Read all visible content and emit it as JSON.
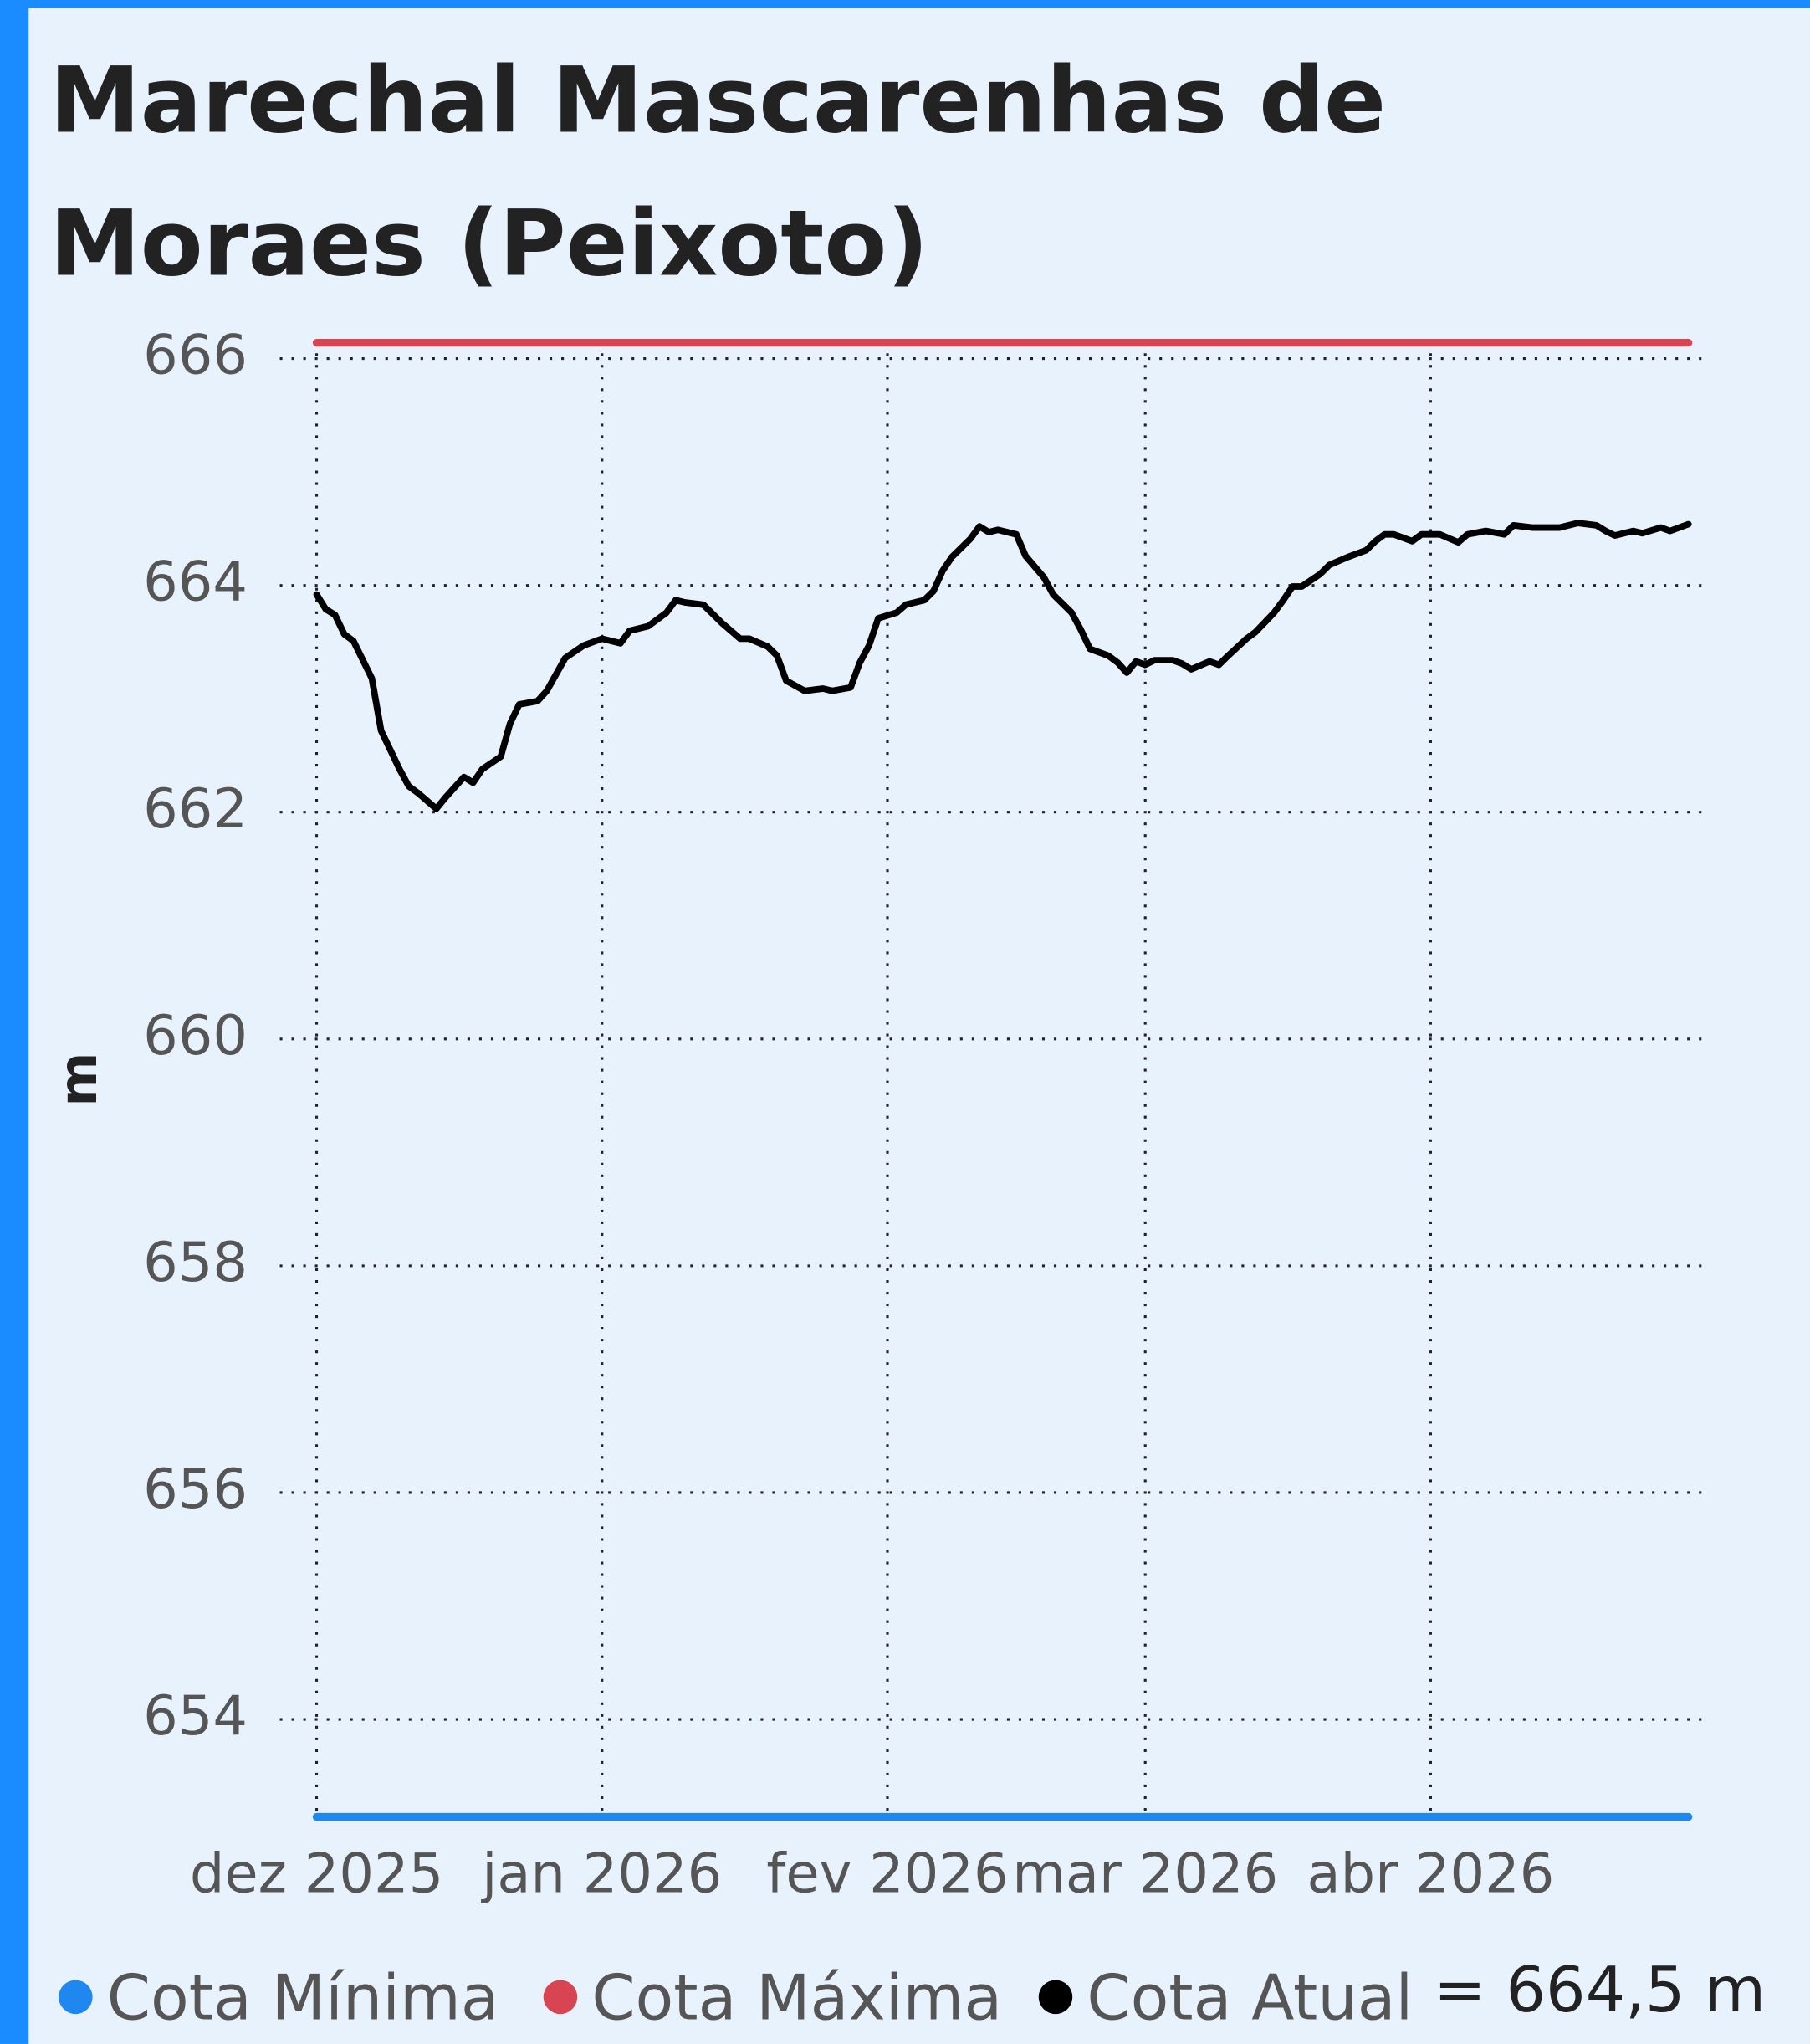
{
  "chart_data": {
    "type": "line",
    "title": "Marechal Mascarenhas de Moraes (Peixoto)",
    "y_label": "m",
    "annotation": "= 664,5 m",
    "xlim": [
      -4,
      151
    ],
    "ylim": [
      653,
      666.3
    ],
    "xticks": [
      {
        "value": 0,
        "label": "dez 2025"
      },
      {
        "value": 31,
        "label": "jan 2026"
      },
      {
        "value": 62,
        "label": "fev 2026"
      },
      {
        "value": 90,
        "label": "mar 2026"
      },
      {
        "value": 121,
        "label": "abr 2026"
      }
    ],
    "yticks": [
      654,
      656,
      658,
      660,
      662,
      664,
      666
    ],
    "grid": true,
    "series": [
      {
        "name": "Cota Mínima",
        "color": "#1e88f0",
        "x": [
          0,
          149
        ],
        "values": [
          653.14,
          653.14
        ]
      },
      {
        "name": "Cota Máxima",
        "color": "#d94452",
        "x": [
          0,
          149
        ],
        "values": [
          666.14,
          666.14
        ]
      },
      {
        "name": "Cota Atual",
        "color": "#000000",
        "x": [
          0,
          1,
          2,
          3,
          4,
          6,
          7,
          9,
          10,
          11,
          13,
          14,
          16,
          17,
          18,
          20,
          21,
          22,
          24,
          25,
          27,
          29,
          31,
          33,
          34,
          36,
          38,
          39,
          40,
          42,
          44,
          46,
          47,
          49,
          50,
          51,
          53,
          55,
          56,
          58,
          59,
          60,
          61,
          63,
          64,
          66,
          67,
          68,
          69,
          71,
          72,
          73,
          74,
          76,
          77,
          79,
          80,
          82,
          83,
          84,
          86,
          87,
          88,
          89,
          90,
          91,
          93,
          94,
          95,
          97,
          98,
          99,
          101,
          102,
          104,
          105,
          106,
          107,
          109,
          110,
          112,
          114,
          115,
          116,
          117,
          119,
          120,
          122,
          124,
          125,
          127,
          129,
          130,
          132,
          135,
          137,
          139,
          140,
          141,
          143,
          144,
          146,
          147,
          149
        ],
        "values": [
          663.92,
          663.79,
          663.74,
          663.57,
          663.51,
          663.18,
          662.72,
          662.38,
          662.23,
          662.17,
          662.03,
          662.13,
          662.31,
          662.26,
          662.38,
          662.49,
          662.78,
          662.95,
          662.98,
          663.07,
          663.36,
          663.47,
          663.53,
          663.49,
          663.6,
          663.64,
          663.76,
          663.87,
          663.85,
          663.83,
          663.67,
          663.53,
          663.53,
          663.46,
          663.38,
          663.16,
          663.07,
          663.09,
          663.07,
          663.1,
          663.32,
          663.47,
          663.71,
          663.76,
          663.83,
          663.87,
          663.95,
          664.13,
          664.25,
          664.41,
          664.52,
          664.47,
          664.49,
          664.45,
          664.26,
          664.07,
          663.92,
          663.76,
          663.61,
          663.44,
          663.38,
          663.32,
          663.23,
          663.33,
          663.3,
          663.34,
          663.34,
          663.31,
          663.26,
          663.33,
          663.3,
          663.38,
          663.53,
          663.59,
          663.76,
          663.87,
          663.99,
          663.99,
          664.1,
          664.18,
          664.25,
          664.31,
          664.39,
          664.45,
          664.45,
          664.39,
          664.45,
          664.45,
          664.38,
          664.45,
          664.48,
          664.45,
          664.53,
          664.51,
          664.51,
          664.55,
          664.53,
          664.48,
          664.44,
          664.48,
          664.46,
          664.51,
          664.48,
          664.54
        ]
      }
    ]
  }
}
